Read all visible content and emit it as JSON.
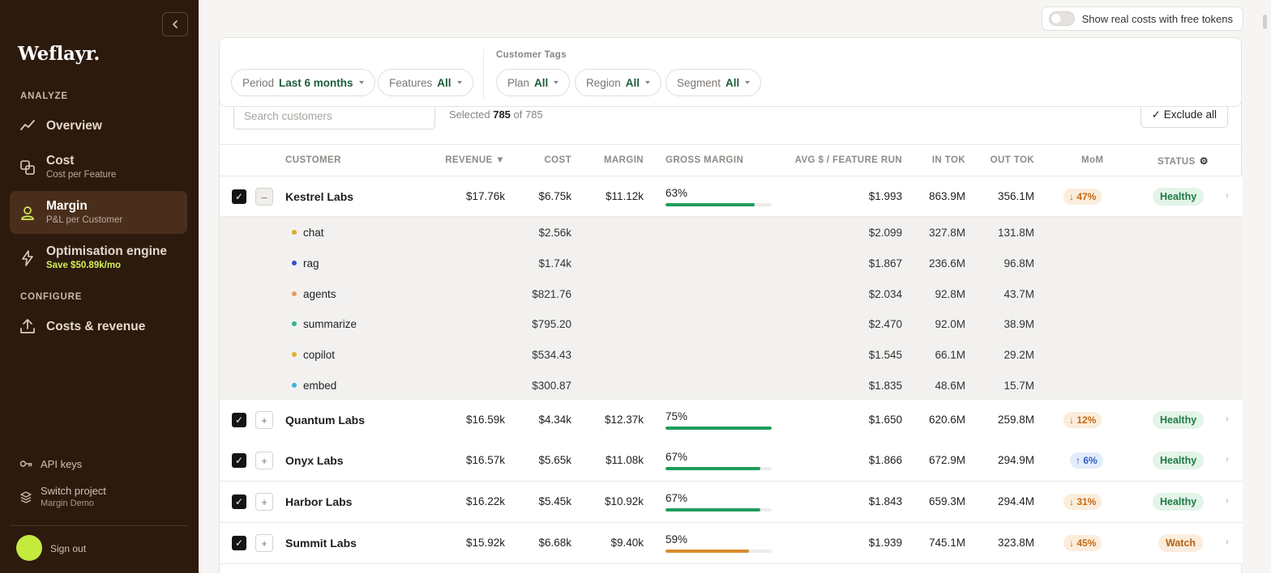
{
  "sidebar": {
    "logo": "Weflayr.",
    "analyze_label": "ANALYZE",
    "configure_label": "CONFIGURE",
    "nav": {
      "overview": {
        "title": "Overview"
      },
      "cost": {
        "title": "Cost",
        "sub": "Cost per Feature"
      },
      "margin": {
        "title": "Margin",
        "sub": "P&L per Customer"
      },
      "optimisation": {
        "title": "Optimisation engine",
        "sub": "Save $50.89k/mo"
      },
      "costs_revenue": {
        "title": "Costs & revenue"
      }
    },
    "api_keys": "API keys",
    "switch_project": "Switch project",
    "project_name": "Margin Demo",
    "sign_out": "Sign out",
    "avatar_color": "#c4ea3e"
  },
  "toggle": {
    "label": "Show real costs with free tokens",
    "on": false
  },
  "filters": {
    "period": {
      "label": "Period",
      "value": "Last 6 months"
    },
    "features": {
      "label": "Features",
      "value": "All"
    },
    "tags_label": "Customer Tags",
    "plan": {
      "label": "Plan",
      "value": "All"
    },
    "region": {
      "label": "Region",
      "value": "All"
    },
    "segment": {
      "label": "Segment",
      "value": "All"
    }
  },
  "table": {
    "search_placeholder": "Search customers",
    "selected_prefix": "Selected",
    "selected_count": "785",
    "selected_suffix": "of 785",
    "exclude_all": "✓ Exclude all",
    "columns": {
      "customer": "CUSTOMER",
      "revenue": "REVENUE ▼",
      "cost": "COST",
      "margin": "MARGIN",
      "gross_margin": "GROSS MARGIN",
      "avg": "AVG $ / FEATURE RUN",
      "in_tok": "IN TOK",
      "out_tok": "OUT TOK",
      "mom": "MoM",
      "status": "STATUS"
    },
    "kestrel": {
      "name": "Kestrel Labs",
      "revenue": "$17.76k",
      "cost": "$6.75k",
      "margin": "$11.12k",
      "gm_label": "63%",
      "gm": 0.63,
      "gm_color": "#1f9d5c",
      "avg": "$1.993",
      "in_tok": "863.9M",
      "out_tok": "356.1M",
      "mom": "↓ 47%",
      "mom_dir": "down",
      "status": "Healthy",
      "expander": "–"
    },
    "features": [
      {
        "name": "chat",
        "dot": "#e0a92f",
        "cost": "$2.56k",
        "avg": "$2.099",
        "in_tok": "327.8M",
        "out_tok": "131.8M"
      },
      {
        "name": "rag",
        "dot": "#2f4fd0",
        "cost": "$1.74k",
        "avg": "$1.867",
        "in_tok": "236.6M",
        "out_tok": "96.8M"
      },
      {
        "name": "agents",
        "dot": "#e89b5a",
        "cost": "$821.76",
        "avg": "$2.034",
        "in_tok": "92.8M",
        "out_tok": "43.7M"
      },
      {
        "name": "summarize",
        "dot": "#2fb58c",
        "cost": "$795.20",
        "avg": "$2.470",
        "in_tok": "92.0M",
        "out_tok": "38.9M"
      },
      {
        "name": "copilot",
        "dot": "#e0b22f",
        "cost": "$534.43",
        "avg": "$1.545",
        "in_tok": "66.1M",
        "out_tok": "29.2M"
      },
      {
        "name": "embed",
        "dot": "#3fb3d9",
        "cost": "$300.87",
        "avg": "$1.835",
        "in_tok": "48.6M",
        "out_tok": "15.7M"
      }
    ],
    "rows": [
      {
        "name": "Quantum Labs",
        "revenue": "$16.59k",
        "cost": "$4.34k",
        "margin": "$12.37k",
        "gm_label": "75%",
        "gm": 0.75,
        "gm_color": "#1f9d5c",
        "avg": "$1.650",
        "in_tok": "620.6M",
        "out_tok": "259.8M",
        "mom": "↓ 12%",
        "mom_dir": "down",
        "status": "Healthy",
        "expander": "+"
      },
      {
        "name": "Onyx Labs",
        "revenue": "$16.57k",
        "cost": "$5.65k",
        "margin": "$11.08k",
        "gm_label": "67%",
        "gm": 0.67,
        "gm_color": "#1f9d5c",
        "avg": "$1.866",
        "in_tok": "672.9M",
        "out_tok": "294.9M",
        "mom": "↑ 6%",
        "mom_dir": "up",
        "status": "Healthy",
        "expander": "+"
      },
      {
        "name": "Harbor Labs",
        "revenue": "$16.22k",
        "cost": "$5.45k",
        "margin": "$10.92k",
        "gm_label": "67%",
        "gm": 0.67,
        "gm_color": "#1f9d5c",
        "avg": "$1.843",
        "in_tok": "659.3M",
        "out_tok": "294.4M",
        "mom": "↓ 31%",
        "mom_dir": "down",
        "status": "Healthy",
        "expander": "+"
      },
      {
        "name": "Summit Labs",
        "revenue": "$15.92k",
        "cost": "$6.68k",
        "margin": "$9.40k",
        "gm_label": "59%",
        "gm": 0.59,
        "gm_color": "#d98a2b",
        "avg": "$1.939",
        "in_tok": "745.1M",
        "out_tok": "323.8M",
        "mom": "↓ 45%",
        "mom_dir": "down",
        "status": "Watch",
        "expander": "+"
      }
    ]
  }
}
